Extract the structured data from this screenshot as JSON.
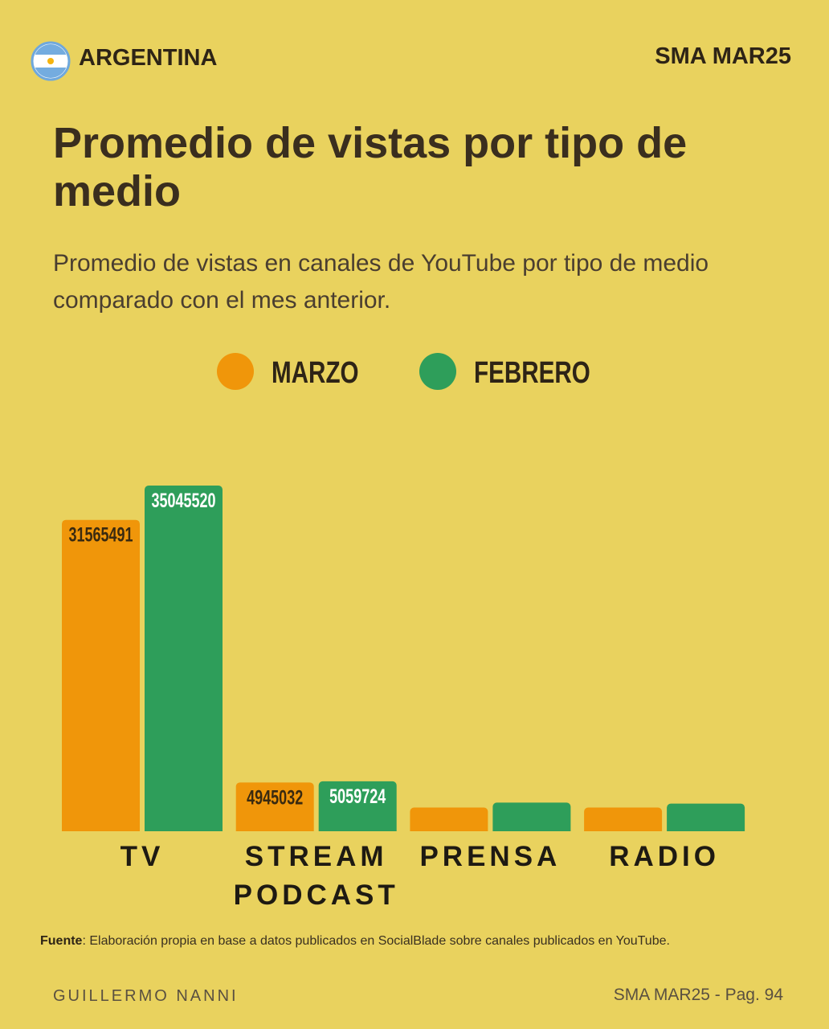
{
  "header": {
    "country": "ARGENTINA",
    "edition": "SMA MAR25"
  },
  "chart_data": {
    "type": "bar",
    "title": "Promedio de vistas por tipo de medio",
    "subtitle": "Promedio de vistas en canales de YouTube por tipo de medio comparado con el mes anterior.",
    "categories": [
      "TV",
      "STREAM PODCAST",
      "PRENSA",
      "RADIO"
    ],
    "series": [
      {
        "name": "MARZO",
        "color": "#f0960a",
        "values": [
          31565491,
          4945032,
          2400000,
          2400000
        ]
      },
      {
        "name": "FEBRERO",
        "color": "#2e9e5a",
        "values": [
          35045520,
          5059724,
          2900000,
          2800000
        ]
      }
    ]
  },
  "footer": {
    "source_label": "Fuente",
    "source_text": ": Elaboración propia en base a datos publicados en SocialBlade sobre canales publicados en YouTube.",
    "author": "GUILLERMO NANNI",
    "page": "SMA MAR25 - Pag. 94"
  }
}
